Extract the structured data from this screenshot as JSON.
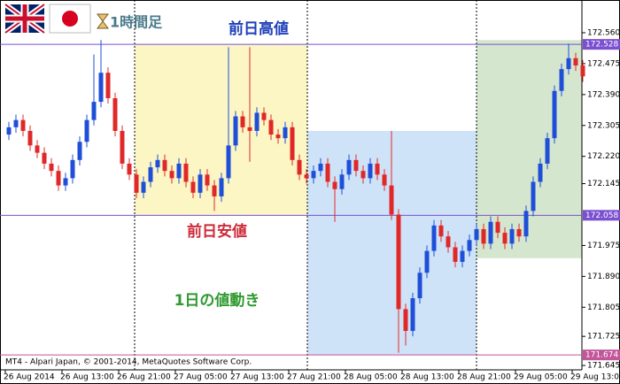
{
  "chart_data": {
    "type": "candlestick",
    "timeframe": "1時間足",
    "footer": "MT4 - Alpari Japan, © 2001-2014, MetaQuotes Software Corp.",
    "up_color": "#1f4fd8",
    "down_color": "#e02828",
    "categories": [
      "26 Aug 2014",
      null,
      null,
      null,
      null,
      null,
      null,
      null,
      "26 Aug 13:00",
      null,
      null,
      null,
      null,
      null,
      null,
      null,
      "26 Aug 21:00",
      null,
      null,
      null,
      null,
      null,
      null,
      null,
      "27 Aug 05:00",
      null,
      null,
      null,
      null,
      null,
      null,
      null,
      "27 Aug 13:00",
      null,
      null,
      null,
      null,
      null,
      null,
      null,
      "27 Aug 21:00",
      null,
      null,
      null,
      null,
      null,
      null,
      null,
      "28 Aug 05:00",
      null,
      null,
      null,
      null,
      null,
      null,
      null,
      "28 Aug 13:00",
      null,
      null,
      null,
      null,
      null,
      null,
      null,
      "28 Aug 21:00",
      null,
      null,
      null,
      null,
      null,
      null,
      null,
      "29 Aug 05:00",
      null,
      null,
      null,
      null,
      null,
      null,
      null,
      "29 Aug 13:00",
      null
    ],
    "open": [
      172.28,
      172.3,
      172.32,
      172.29,
      172.25,
      172.23,
      172.2,
      172.18,
      172.14,
      172.16,
      172.21,
      172.26,
      172.32,
      172.37,
      172.45,
      172.38,
      172.29,
      172.2,
      172.17,
      172.12,
      172.15,
      172.19,
      172.21,
      172.18,
      172.16,
      172.2,
      172.15,
      172.12,
      172.17,
      172.14,
      172.11,
      172.16,
      172.25,
      172.33,
      172.3,
      172.29,
      172.34,
      172.32,
      172.28,
      172.27,
      172.3,
      172.21,
      172.17,
      172.16,
      172.18,
      172.2,
      172.15,
      172.13,
      172.17,
      172.21,
      172.18,
      172.16,
      172.2,
      172.17,
      172.14,
      172.06,
      171.8,
      171.74,
      171.83,
      171.9,
      171.96,
      172.03,
      172,
      171.97,
      171.93,
      171.96,
      171.99,
      172.02,
      171.98,
      172.04,
      172.01,
      171.98,
      172.02,
      172,
      172.07,
      172.15,
      172.2,
      172.27,
      172.4,
      172.46,
      172.49,
      172.47
    ],
    "high": [
      172.315,
      172.335,
      172.335,
      172.305,
      172.265,
      172.245,
      172.215,
      172.195,
      172.175,
      172.225,
      172.275,
      172.335,
      172.5,
      172.54,
      172.465,
      172.395,
      172.305,
      172.215,
      172.185,
      172.165,
      172.205,
      172.225,
      172.225,
      172.195,
      172.215,
      172.215,
      172.165,
      172.185,
      172.185,
      172.155,
      172.175,
      172.52,
      172.345,
      172.345,
      172.52,
      172.355,
      172.355,
      172.335,
      172.295,
      172.315,
      172.315,
      172.225,
      172.185,
      172.195,
      172.215,
      172.215,
      172.165,
      172.185,
      172.225,
      172.225,
      172.195,
      172.215,
      172.215,
      172.185,
      172.29,
      172.075,
      171.815,
      171.845,
      171.915,
      171.975,
      172.045,
      172.045,
      172.015,
      171.985,
      171.975,
      172.005,
      172.035,
      172.035,
      172.055,
      172.055,
      172.025,
      172.035,
      172.035,
      172.085,
      172.165,
      172.215,
      172.285,
      172.415,
      172.475,
      172.53,
      172.505,
      172.485
    ],
    "low": [
      172.265,
      172.285,
      172.275,
      172.235,
      172.215,
      172.185,
      172.165,
      172.125,
      172.125,
      172.145,
      172.195,
      172.245,
      172.305,
      172.355,
      172.365,
      172.275,
      172.185,
      172.155,
      172.105,
      172.105,
      172.135,
      172.175,
      172.165,
      172.145,
      172.145,
      172.135,
      172.105,
      172.105,
      172.125,
      172.07,
      172.095,
      172.145,
      172.235,
      172.285,
      172.205,
      172.275,
      172.305,
      172.265,
      172.255,
      172.255,
      172.195,
      172.155,
      172.145,
      172.145,
      172.165,
      172.135,
      172.04,
      172.115,
      172.155,
      172.165,
      172.145,
      172.145,
      172.155,
      172.125,
      172.045,
      171.68,
      171.7,
      171.725,
      171.815,
      171.885,
      171.945,
      171.985,
      171.955,
      171.915,
      171.915,
      171.945,
      171.975,
      171.965,
      171.965,
      171.995,
      171.965,
      171.965,
      171.985,
      171.985,
      172.055,
      172.135,
      172.185,
      172.255,
      172.385,
      172.445,
      172.455,
      172.425
    ],
    "close": [
      172.3,
      172.32,
      172.29,
      172.25,
      172.23,
      172.2,
      172.18,
      172.14,
      172.16,
      172.21,
      172.26,
      172.32,
      172.37,
      172.45,
      172.38,
      172.29,
      172.2,
      172.17,
      172.12,
      172.15,
      172.19,
      172.21,
      172.18,
      172.16,
      172.2,
      172.15,
      172.12,
      172.17,
      172.14,
      172.11,
      172.16,
      172.25,
      172.33,
      172.3,
      172.29,
      172.34,
      172.32,
      172.28,
      172.27,
      172.3,
      172.21,
      172.17,
      172.16,
      172.18,
      172.2,
      172.15,
      172.13,
      172.17,
      172.21,
      172.18,
      172.16,
      172.2,
      172.17,
      172.14,
      172.06,
      171.8,
      171.74,
      171.83,
      171.9,
      171.96,
      172.03,
      172,
      171.97,
      171.93,
      171.96,
      171.99,
      172.02,
      171.98,
      172.04,
      172.01,
      171.98,
      172.02,
      172,
      172.07,
      172.15,
      172.2,
      172.27,
      172.4,
      172.46,
      172.49,
      172.47,
      172.44
    ],
    "ylim": [
      171.633,
      172.65
    ],
    "yticks": [
      {
        "value": 172.56,
        "label": "172.560"
      },
      {
        "value": 172.475,
        "label": "172.475"
      },
      {
        "value": 172.39,
        "label": "172.390"
      },
      {
        "value": 172.305,
        "label": "172.305"
      },
      {
        "value": 172.22,
        "label": "172.220"
      },
      {
        "value": 172.145,
        "label": "172.145"
      },
      {
        "value": 171.975,
        "label": "171.975"
      },
      {
        "value": 171.89,
        "label": "171.890"
      },
      {
        "value": 171.805,
        "label": "171.805"
      },
      {
        "value": 171.725,
        "label": "171.725"
      },
      {
        "value": 171.645,
        "label": "171.645"
      }
    ],
    "levels": [
      {
        "value": 172.528,
        "label": "172.528",
        "color": "#7a4fd0"
      },
      {
        "value": 172.058,
        "label": "172.058",
        "color": "#7a4fd0"
      },
      {
        "value": 171.674,
        "label": "171.674",
        "color": "#c2569a"
      }
    ],
    "zones": [
      {
        "top": 172.528,
        "bottom": 172.058,
        "color": "#fbf6c4"
      },
      {
        "top": 172.29,
        "bottom": 171.674,
        "color": "#cfe3f8"
      },
      {
        "top": 172.54,
        "bottom": 171.94,
        "color": "#d5e6cf"
      }
    ],
    "annotations": [
      {
        "text": "前日高値",
        "color": "#1f3fb8"
      },
      {
        "text": "前日安値",
        "color": "#cc2a3a"
      },
      {
        "text": "1日の値動き",
        "color": "#2f9a2f"
      }
    ]
  }
}
